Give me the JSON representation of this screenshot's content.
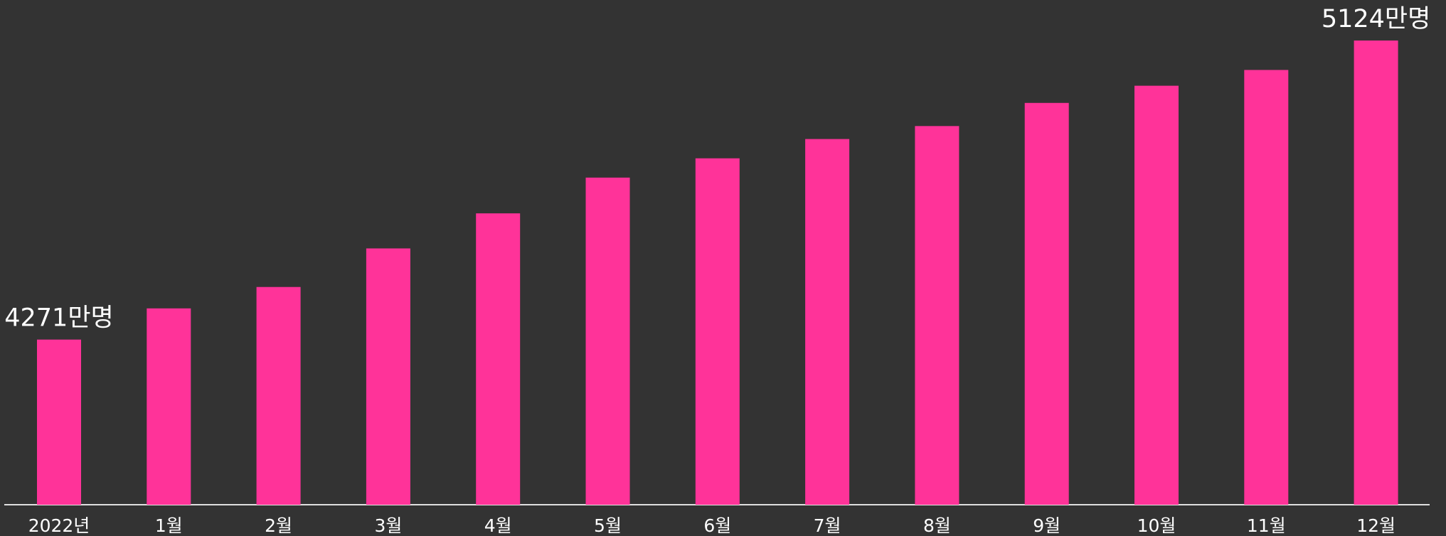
{
  "chart_data": {
    "type": "bar",
    "categories": [
      "2022년",
      "1월",
      "2월",
      "3월",
      "4월",
      "5월",
      "6월",
      "7월",
      "8월",
      "9월",
      "10월",
      "11월",
      "12월"
    ],
    "values": [
      4271,
      4360,
      4421,
      4531,
      4631,
      4733,
      4788,
      4843,
      4880,
      4946,
      4995,
      5040,
      5124
    ],
    "value_labels": [
      "4271만명",
      null,
      null,
      null,
      null,
      null,
      null,
      null,
      null,
      null,
      null,
      null,
      "5124만명"
    ],
    "color": "#ff3399",
    "ylim": [
      3800,
      5200
    ]
  }
}
